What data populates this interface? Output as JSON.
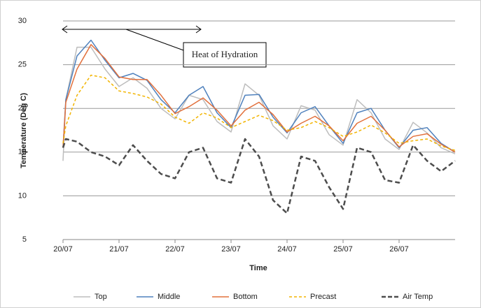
{
  "chart_data": {
    "type": "line",
    "y_label": "Temperature (Deg C)",
    "x_label": "Time",
    "annotation": "Heat of Hydration",
    "x": [
      0,
      0.05,
      0.25,
      0.5,
      0.75,
      1,
      1.25,
      1.5,
      1.75,
      2,
      2.25,
      2.5,
      2.75,
      3,
      3.25,
      3.5,
      3.75,
      4,
      4.25,
      4.5,
      4.75,
      5,
      5.25,
      5.5,
      5.75,
      6,
      6.25,
      6.5,
      6.75,
      7
    ],
    "xlim": [
      0,
      7
    ],
    "xticks": [
      {
        "value": 0,
        "label": "20/07"
      },
      {
        "value": 1,
        "label": "21/07"
      },
      {
        "value": 2,
        "label": "22/07"
      },
      {
        "value": 3,
        "label": "23/07"
      },
      {
        "value": 4,
        "label": "24/07"
      },
      {
        "value": 5,
        "label": "25/07"
      },
      {
        "value": 6,
        "label": "26/07"
      }
    ],
    "ylim": [
      5,
      30
    ],
    "yticks": [
      5,
      10,
      15,
      20,
      25,
      30
    ],
    "grid": true,
    "legend": "bottom",
    "series": [
      {
        "name": "Top",
        "color": "#bdbdbd",
        "style": "solid",
        "values": [
          14,
          21,
          27,
          27,
          24.5,
          22.5,
          23.5,
          22.3,
          20,
          18.8,
          21.5,
          21,
          18.5,
          17.3,
          22.8,
          21.5,
          18,
          16.5,
          20.3,
          19.8,
          17,
          15.8,
          21,
          19.5,
          16.5,
          15.3,
          18.4,
          17.2,
          15.5,
          14.8
        ]
      },
      {
        "name": "Middle",
        "color": "#4f81bd",
        "style": "solid",
        "values": [
          15.5,
          21,
          26,
          27.8,
          25.5,
          23.5,
          24,
          23.2,
          21,
          19.5,
          21.5,
          22.5,
          19.5,
          17.8,
          21.5,
          21.6,
          19,
          17.2,
          19.5,
          20.2,
          18,
          16,
          19.5,
          20,
          17.5,
          15.5,
          17.5,
          17.8,
          16,
          15
        ]
      },
      {
        "name": "Bottom",
        "color": "#e2703c",
        "style": "solid",
        "values": [
          15.5,
          20.7,
          24.5,
          27.3,
          25.7,
          23.6,
          23.3,
          23.3,
          21.5,
          19.4,
          20.2,
          21.2,
          19.8,
          18,
          19.8,
          20.7,
          19.3,
          17.3,
          18.3,
          19.1,
          18,
          16.3,
          18.3,
          19.1,
          17.5,
          15.6,
          16.8,
          17.1,
          15.9,
          15
        ]
      },
      {
        "name": "Precast",
        "color": "#f2b400",
        "style": "dashed",
        "values": [
          16,
          18,
          21.5,
          23.8,
          23.5,
          22,
          21.7,
          21.3,
          20.5,
          19,
          18.3,
          19.5,
          18.9,
          17.8,
          18.5,
          19.2,
          18.6,
          17.5,
          17.8,
          18.5,
          17.8,
          16.8,
          17.3,
          18.1,
          17.2,
          16,
          16.3,
          16.5,
          15.7,
          15.2
        ]
      },
      {
        "name": "Air Temp",
        "color": "#4d4d4d",
        "style": "dashed",
        "values": [
          15.5,
          16.5,
          16.2,
          15,
          14.5,
          13.5,
          15.8,
          14,
          12.5,
          12,
          15,
          15.5,
          12,
          11.5,
          16.5,
          14.5,
          9.5,
          8,
          14.5,
          14,
          11,
          8.5,
          15.5,
          15,
          11.8,
          11.5,
          15.8,
          14,
          12.8,
          14
        ]
      }
    ]
  }
}
